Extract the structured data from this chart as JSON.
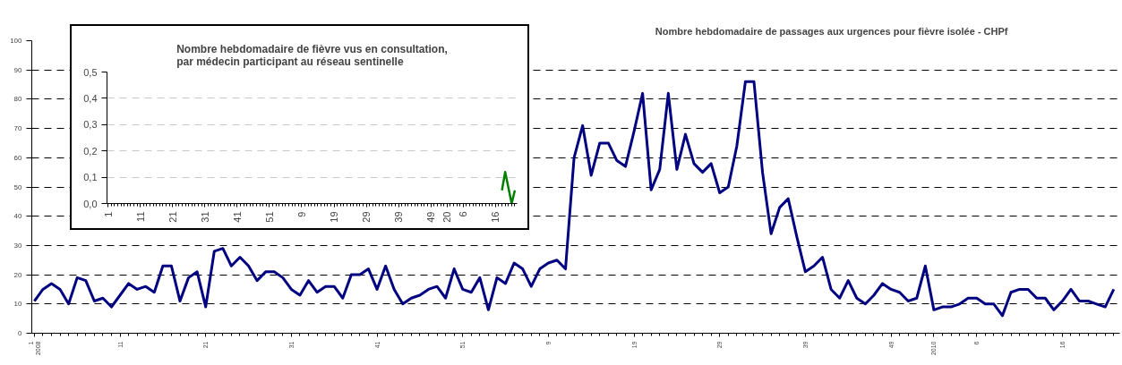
{
  "chart_data": [
    {
      "type": "line",
      "title": "Nombre hebdomadaire de passages aux urgences pour fièvre isolée - CHPf",
      "categories": [
        "1\n2008",
        null,
        null,
        null,
        null,
        null,
        null,
        null,
        null,
        null,
        "11",
        null,
        null,
        null,
        null,
        null,
        null,
        null,
        null,
        null,
        "21",
        null,
        null,
        null,
        null,
        null,
        null,
        null,
        null,
        null,
        "31",
        null,
        null,
        null,
        null,
        null,
        null,
        null,
        null,
        null,
        "41",
        null,
        null,
        null,
        null,
        null,
        null,
        null,
        null,
        null,
        "51",
        null,
        null,
        null,
        null,
        null,
        null,
        null,
        null,
        null,
        "9",
        null,
        null,
        null,
        null,
        null,
        null,
        null,
        null,
        null,
        "19",
        null,
        null,
        null,
        null,
        null,
        null,
        null,
        null,
        null,
        "29",
        null,
        null,
        null,
        null,
        null,
        null,
        null,
        null,
        null,
        "39",
        null,
        null,
        null,
        null,
        null,
        null,
        null,
        null,
        null,
        "49",
        null,
        null,
        null,
        null,
        "2010",
        null,
        null,
        null,
        null,
        "6",
        null,
        null,
        null,
        null,
        null,
        null,
        null,
        null,
        null,
        "16",
        null,
        null,
        null,
        null,
        null,
        null
      ],
      "series": [
        {
          "color": "#000080",
          "values": [
            11,
            15,
            17,
            15,
            10,
            19,
            18,
            11,
            12,
            9,
            13,
            17,
            15,
            16,
            14,
            23,
            23,
            11,
            19,
            21,
            9,
            28,
            29,
            23,
            26,
            23,
            18,
            21,
            21,
            19,
            15,
            13,
            18,
            14,
            16,
            16,
            12,
            20,
            20,
            22,
            15,
            23,
            15,
            10,
            12,
            13,
            15,
            16,
            12,
            22,
            15,
            14,
            19,
            8,
            19,
            17,
            24,
            22,
            16,
            22,
            24,
            25,
            22,
            60,
            71,
            54,
            65,
            65,
            59,
            57,
            69,
            82,
            49,
            56,
            82,
            56,
            68,
            58,
            55,
            58,
            48,
            50,
            64,
            86,
            86,
            55,
            34,
            43,
            46,
            33,
            21,
            23,
            26,
            15,
            12,
            18,
            12,
            10,
            13,
            17,
            15,
            14,
            11,
            12,
            23,
            8,
            9,
            9,
            10,
            12,
            12,
            10,
            10,
            6,
            14,
            15,
            15,
            12,
            12,
            8,
            11,
            15,
            11,
            11,
            10,
            9,
            15
          ]
        }
      ],
      "ylim": [
        0,
        100
      ],
      "yticks": [
        0,
        10,
        20,
        30,
        40,
        50,
        60,
        70,
        80,
        90,
        100
      ],
      "grid": "y"
    },
    {
      "type": "line",
      "title": "Nombre hebdomadaire de fièvre vus en consultation,\npar médecin participant au réseau sentinelle",
      "categories": [
        "1",
        null,
        null,
        null,
        null,
        null,
        null,
        null,
        null,
        null,
        "11",
        null,
        null,
        null,
        null,
        null,
        null,
        null,
        null,
        null,
        "21",
        null,
        null,
        null,
        null,
        null,
        null,
        null,
        null,
        null,
        "31",
        null,
        null,
        null,
        null,
        null,
        null,
        null,
        null,
        null,
        "41",
        null,
        null,
        null,
        null,
        null,
        null,
        null,
        null,
        null,
        "51",
        null,
        null,
        null,
        null,
        null,
        null,
        null,
        null,
        null,
        "9",
        null,
        null,
        null,
        null,
        null,
        null,
        null,
        null,
        null,
        "19",
        null,
        null,
        null,
        null,
        null,
        null,
        null,
        null,
        null,
        "29",
        null,
        null,
        null,
        null,
        null,
        null,
        null,
        null,
        null,
        "39",
        null,
        null,
        null,
        null,
        null,
        null,
        null,
        null,
        null,
        "49",
        null,
        null,
        null,
        null,
        "20",
        null,
        null,
        null,
        null,
        "6",
        null,
        null,
        null,
        null,
        null,
        null,
        null,
        null,
        null,
        "16",
        null,
        null,
        null,
        null,
        null,
        null
      ],
      "series": [
        {
          "color": "#008000",
          "values": [
            null,
            null,
            null,
            null,
            null,
            null,
            null,
            null,
            null,
            null,
            null,
            null,
            null,
            null,
            null,
            null,
            null,
            null,
            null,
            null,
            null,
            null,
            null,
            null,
            null,
            null,
            null,
            null,
            null,
            null,
            null,
            null,
            null,
            null,
            null,
            null,
            null,
            null,
            null,
            null,
            null,
            null,
            null,
            null,
            null,
            null,
            null,
            null,
            null,
            null,
            null,
            null,
            null,
            null,
            null,
            null,
            null,
            null,
            null,
            null,
            null,
            null,
            null,
            null,
            null,
            null,
            null,
            null,
            null,
            null,
            null,
            null,
            null,
            null,
            null,
            null,
            null,
            null,
            null,
            null,
            null,
            null,
            null,
            null,
            null,
            null,
            null,
            null,
            null,
            null,
            null,
            null,
            null,
            null,
            null,
            null,
            null,
            null,
            null,
            null,
            null,
            null,
            null,
            null,
            null,
            null,
            null,
            null,
            null,
            null,
            null,
            null,
            null,
            null,
            null,
            null,
            null,
            null,
            null,
            null,
            null,
            null,
            0.05,
            0.12,
            0.06,
            0.0,
            0.05
          ]
        }
      ],
      "ylim": [
        0,
        0.5
      ],
      "yticks": [
        {
          "value": 0,
          "label": "0,0"
        },
        {
          "value": 0.1,
          "label": "0,1"
        },
        {
          "value": 0.2,
          "label": "0,2"
        },
        {
          "value": 0.3,
          "label": "0,3"
        },
        {
          "value": 0.4,
          "label": "0,4"
        },
        {
          "value": 0.5,
          "label": "0,5"
        }
      ],
      "grid": "y"
    }
  ]
}
